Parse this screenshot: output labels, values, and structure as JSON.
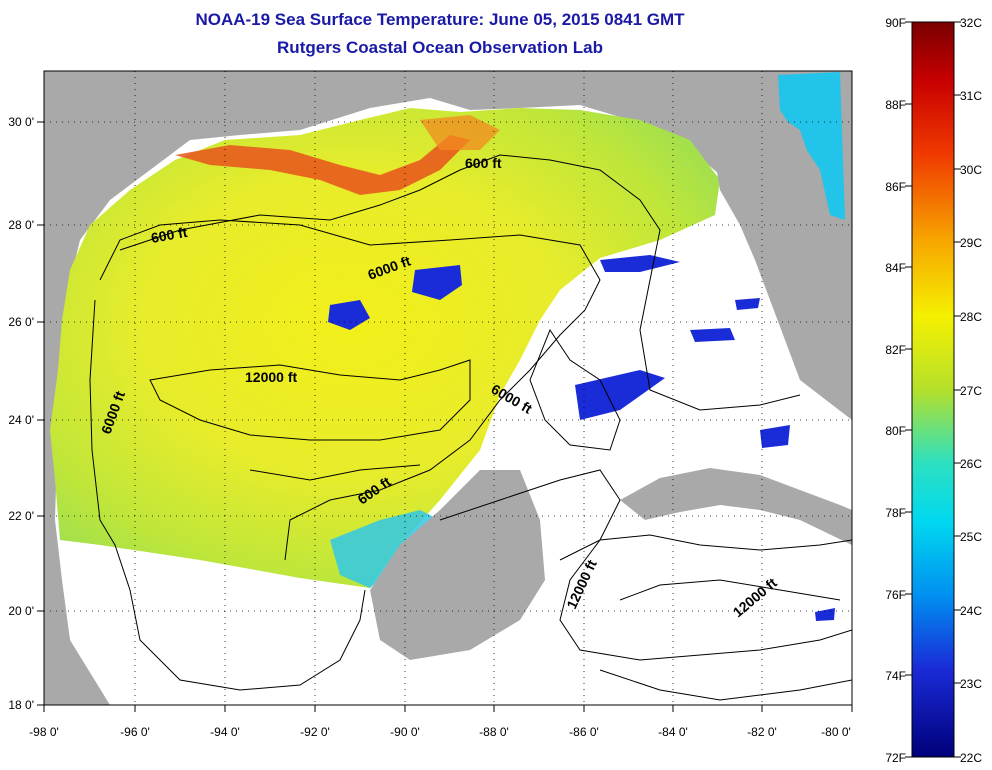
{
  "title": "NOAA-19 Sea Surface Temperature:  June 05, 2015 0841 GMT",
  "subtitle": "Rutgers Coastal Ocean Observation Lab",
  "longitude_ticks": [
    "-98 0'",
    "-96 0'",
    "-94 0'",
    "-92 0'",
    "-90 0'",
    "-88 0'",
    "-86 0'",
    "-84 0'",
    "-82 0'",
    "-80 0'"
  ],
  "latitude_ticks": [
    "30 0'",
    "28 0'",
    "26 0'",
    "24 0'",
    "22 0'",
    "20 0'",
    "18 0'"
  ],
  "contour_labels": [
    "600 ft",
    "600 ft",
    "6000 ft",
    "12000 ft",
    "6000 ft",
    "6000 ft",
    "600 ft",
    "12000 ft",
    "12000 ft"
  ],
  "colorbar": {
    "fahrenheit_labels": [
      "90F",
      "88F",
      "86F",
      "84F",
      "82F",
      "80F",
      "78F",
      "76F",
      "74F",
      "72F"
    ],
    "celsius_labels": [
      "32C",
      "31C",
      "30C",
      "29C",
      "28C",
      "27C",
      "26C",
      "25C",
      "24C",
      "23C",
      "22C"
    ],
    "range_f": [
      72,
      90
    ],
    "range_c": [
      22,
      32
    ]
  },
  "map_extent": {
    "lon": [
      -98,
      -80
    ],
    "lat": [
      18,
      31
    ]
  },
  "colors": {
    "land": "#a9a9a9",
    "cloud_nodata": "#ffffff",
    "title_text": "#1a1aa6",
    "warm": "#e8521c",
    "typical": "#eef02a",
    "cool": "#1a2bd8"
  }
}
